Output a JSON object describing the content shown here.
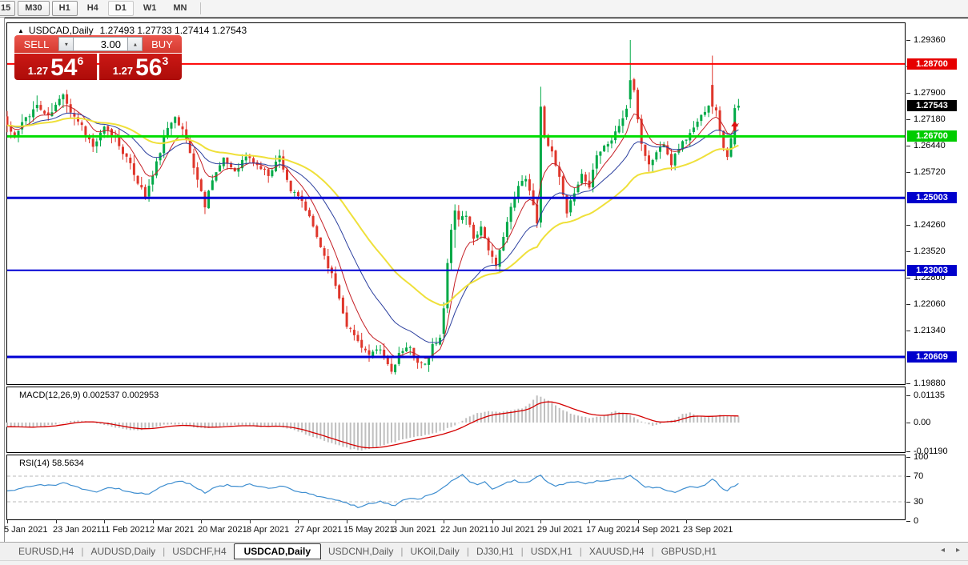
{
  "toolbar": {
    "timeframes": [
      {
        "label": "15",
        "state": "clipped"
      },
      {
        "label": "M30",
        "state": "raised"
      },
      {
        "label": "H1",
        "state": "raised"
      },
      {
        "label": "H4",
        "state": "flat"
      },
      {
        "label": "D1",
        "state": "checked"
      },
      {
        "label": "W1",
        "state": "flat"
      },
      {
        "label": "MN",
        "state": "flat"
      }
    ]
  },
  "icons": {
    "collapse_marker": "▲",
    "spin_down": "▼",
    "spin_up": "▲",
    "tab_scroll_left": "◂",
    "tab_scroll_right": "▸"
  },
  "chart": {
    "title_text": "USDCAD,Daily",
    "ohlc_text": "1.27493 1.27733 1.27414 1.27543"
  },
  "trade_panel": {
    "sell_label": "SELL",
    "buy_label": "BUY",
    "volume": "3.00",
    "sell_price": {
      "prefix": "1.27",
      "big": "54",
      "pip": "6",
      "value": 1.27546
    },
    "buy_price": {
      "prefix": "1.27",
      "big": "56",
      "pip": "3",
      "value": 1.27563
    }
  },
  "indicators": {
    "macd_label": "MACD(12,26,9) 0.002537 0.002953",
    "rsi_label": "RSI(14) 58.5634"
  },
  "tabs": {
    "items": [
      "EURUSD,H4",
      "AUDUSD,Daily",
      "USDCHF,H4",
      "USDCAD,Daily",
      "USDCNH,Daily",
      "UKOil,Daily",
      "DJ30,H1",
      "USDX,H1",
      "XAUUSD,H4",
      "GBPUSD,H1"
    ],
    "active": "USDCAD,Daily"
  },
  "chart_data": {
    "type": "candlestick",
    "symbol": "USDCAD",
    "timeframe": "Daily",
    "current_bar": {
      "open": 1.27493,
      "high": 1.27733,
      "low": 1.27414,
      "close": 1.27543
    },
    "n_candles": 197,
    "seed": 11,
    "candle_colors": {
      "up": "#00a947",
      "down": "#df362b"
    },
    "price_axis": {
      "min": 1.1988,
      "max": 1.2936,
      "ticks": [
        1.2936,
        1.2864,
        1.279,
        1.2718,
        1.2644,
        1.2572,
        1.2426,
        1.2352,
        1.228,
        1.2206,
        1.2134,
        1.1988
      ],
      "badges": [
        {
          "price": 1.287,
          "bg": "#e60000",
          "fg": "#ffffff"
        },
        {
          "price": 1.27543,
          "bg": "#000000",
          "fg": "#ffffff"
        },
        {
          "price": 1.267,
          "bg": "#00cc00",
          "fg": "#ffffff"
        },
        {
          "price": 1.25003,
          "bg": "#0000cc",
          "fg": "#ffffff"
        },
        {
          "price": 1.23003,
          "bg": "#0000cc",
          "fg": "#ffffff"
        },
        {
          "price": 1.20609,
          "bg": "#0000cc",
          "fg": "#ffffff"
        }
      ]
    },
    "levels": [
      {
        "price": 1.287,
        "color": "#ff0000",
        "width": 2
      },
      {
        "price": 1.267,
        "color": "#00dd00",
        "width": 3
      },
      {
        "price": 1.25003,
        "color": "#0000d4",
        "width": 3
      },
      {
        "price": 1.23003,
        "color": "#0000d4",
        "width": 2
      },
      {
        "price": 1.20609,
        "color": "#0000d4",
        "width": 3
      }
    ],
    "date_labels": [
      {
        "index": 0,
        "text": "5 Jan 2021"
      },
      {
        "index": 13,
        "text": "23 Jan 2021"
      },
      {
        "index": 26,
        "text": "11 Feb 2021"
      },
      {
        "index": 39,
        "text": "2 Mar 2021"
      },
      {
        "index": 52,
        "text": "20 Mar 2021"
      },
      {
        "index": 65,
        "text": "8 Apr 2021"
      },
      {
        "index": 78,
        "text": "27 Apr 2021"
      },
      {
        "index": 91,
        "text": "15 May 2021"
      },
      {
        "index": 104,
        "text": "3 Jun 2021"
      },
      {
        "index": 117,
        "text": "22 Jun 2021"
      },
      {
        "index": 130,
        "text": "10 Jul 2021"
      },
      {
        "index": 143,
        "text": "29 Jul 2021"
      },
      {
        "index": 156,
        "text": "17 Aug 2021"
      },
      {
        "index": 169,
        "text": "4 Sep 2021"
      },
      {
        "index": 182,
        "text": "23 Sep 2021"
      }
    ],
    "close_anchors": [
      [
        0,
        1.27
      ],
      [
        2,
        1.2665
      ],
      [
        5,
        1.2722
      ],
      [
        8,
        1.2755
      ],
      [
        11,
        1.2722
      ],
      [
        14,
        1.277
      ],
      [
        15,
        1.2792
      ],
      [
        17,
        1.274
      ],
      [
        20,
        1.27
      ],
      [
        23,
        1.264
      ],
      [
        26,
        1.2692
      ],
      [
        29,
        1.2665
      ],
      [
        32,
        1.261
      ],
      [
        35,
        1.2545
      ],
      [
        37,
        1.2505
      ],
      [
        39,
        1.256
      ],
      [
        42,
        1.2665
      ],
      [
        45,
        1.2732
      ],
      [
        48,
        1.266
      ],
      [
        51,
        1.255
      ],
      [
        53,
        1.248
      ],
      [
        55,
        1.2555
      ],
      [
        58,
        1.2605
      ],
      [
        61,
        1.2575
      ],
      [
        64,
        1.2615
      ],
      [
        67,
        1.259
      ],
      [
        70,
        1.2565
      ],
      [
        73,
        1.2615
      ],
      [
        76,
        1.252
      ],
      [
        79,
        1.249
      ],
      [
        82,
        1.242
      ],
      [
        85,
        1.234
      ],
      [
        88,
        1.226
      ],
      [
        91,
        1.215
      ],
      [
        94,
        1.2105
      ],
      [
        97,
        1.2065
      ],
      [
        100,
        1.208
      ],
      [
        103,
        1.202
      ],
      [
        105,
        1.207
      ],
      [
        108,
        1.2085
      ],
      [
        110,
        1.205
      ],
      [
        112,
        1.2035
      ],
      [
        114,
        1.209
      ],
      [
        116,
        1.211
      ],
      [
        117,
        1.2195
      ],
      [
        121,
        1.244
      ],
      [
        123,
        1.2455
      ],
      [
        125,
        1.239
      ],
      [
        127,
        1.242
      ],
      [
        129,
        1.236
      ],
      [
        131,
        1.2305
      ],
      [
        133,
        1.24
      ],
      [
        135,
        1.247
      ],
      [
        137,
        1.253
      ],
      [
        139,
        1.256
      ],
      [
        141,
        1.248
      ],
      [
        142,
        1.2435
      ],
      [
        144,
        1.268
      ],
      [
        146,
        1.262
      ],
      [
        148,
        1.2555
      ],
      [
        150,
        1.245
      ],
      [
        152,
        1.252
      ],
      [
        154,
        1.2565
      ],
      [
        156,
        1.253
      ],
      [
        158,
        1.2625
      ],
      [
        160,
        1.2645
      ],
      [
        162,
        1.266
      ],
      [
        164,
        1.27
      ],
      [
        166,
        1.2745
      ],
      [
        168,
        1.279
      ],
      [
        170,
        1.265
      ],
      [
        172,
        1.259
      ],
      [
        174,
        1.2625
      ],
      [
        176,
        1.2655
      ],
      [
        178,
        1.2595
      ],
      [
        180,
        1.264
      ],
      [
        182,
        1.2665
      ],
      [
        184,
        1.269
      ],
      [
        186,
        1.2725
      ],
      [
        188,
        1.276
      ],
      [
        190,
        1.2745
      ],
      [
        191,
        1.269
      ],
      [
        192,
        1.264
      ],
      [
        193,
        1.2618
      ],
      [
        194,
        1.266
      ],
      [
        195,
        1.275
      ],
      [
        196,
        1.27543
      ]
    ],
    "volatility_anchors": [
      [
        0,
        0.005
      ],
      [
        15,
        0.0054
      ],
      [
        30,
        0.0044
      ],
      [
        45,
        0.0052
      ],
      [
        60,
        0.0036
      ],
      [
        75,
        0.004
      ],
      [
        90,
        0.0042
      ],
      [
        105,
        0.0038
      ],
      [
        120,
        0.0046
      ],
      [
        135,
        0.0044
      ],
      [
        150,
        0.0048
      ],
      [
        165,
        0.0046
      ],
      [
        180,
        0.0038
      ],
      [
        196,
        0.0034
      ]
    ],
    "feature_candles": [
      {
        "i": 117,
        "o": 1.2125,
        "h": 1.2212,
        "l": 1.2108,
        "c": 1.2195
      },
      {
        "i": 118,
        "o": 1.2195,
        "h": 1.2332,
        "l": 1.2182,
        "c": 1.232
      },
      {
        "i": 119,
        "o": 1.232,
        "h": 1.2428,
        "l": 1.2302,
        "c": 1.2412
      },
      {
        "i": 120,
        "o": 1.2412,
        "h": 1.2482,
        "l": 1.2362,
        "c": 1.2465
      },
      {
        "i": 143,
        "o": 1.2432,
        "h": 1.2807,
        "l": 1.2418,
        "c": 1.2752
      },
      {
        "i": 167,
        "o": 1.2772,
        "h": 1.2936,
        "l": 1.2748,
        "c": 1.2825
      },
      {
        "i": 189,
        "o": 1.2812,
        "h": 1.2893,
        "l": 1.2732,
        "c": 1.2752
      },
      {
        "i": 195,
        "o": 1.2648,
        "h": 1.2758,
        "l": 1.2638,
        "c": 1.2748
      },
      {
        "i": 196,
        "o": 1.27493,
        "h": 1.27733,
        "l": 1.27414,
        "c": 1.27543
      }
    ],
    "moving_averages": [
      {
        "period": 8,
        "color": "#c52026",
        "width": 1
      },
      {
        "period": 21,
        "color": "#2b3f9e",
        "width": 1
      },
      {
        "period": 45,
        "color": "#efe03a",
        "width": 2
      }
    ],
    "markers": [
      {
        "type": "arrow-up",
        "index": 195,
        "price": 1.2712,
        "color": "#dd1111"
      }
    ],
    "macd": {
      "params": "12,26,9",
      "main": 0.002537,
      "signal": 0.002953,
      "axis_ticks": [
        {
          "v": 0.01135,
          "text": "0.01135"
        },
        {
          "v": 0,
          "text": "0.00"
        },
        {
          "v": -0.0119,
          "text": "-0.01190"
        }
      ],
      "histogram_color": "#bfbfbf",
      "signal_color": "#d40000",
      "anchors": [
        [
          0,
          -0.0016
        ],
        [
          6,
          -0.002
        ],
        [
          12,
          -0.001
        ],
        [
          16,
          0.0004
        ],
        [
          19,
          0.0008
        ],
        [
          23,
          0.0001
        ],
        [
          27,
          -0.0013
        ],
        [
          31,
          -0.0026
        ],
        [
          35,
          -0.0033
        ],
        [
          39,
          -0.002
        ],
        [
          43,
          -0.0007
        ],
        [
          47,
          -0.001
        ],
        [
          52,
          -0.0024
        ],
        [
          56,
          -0.0019
        ],
        [
          60,
          -0.0011
        ],
        [
          64,
          -0.0013
        ],
        [
          68,
          -0.0018
        ],
        [
          72,
          -0.0014
        ],
        [
          76,
          -0.0028
        ],
        [
          80,
          -0.0048
        ],
        [
          84,
          -0.007
        ],
        [
          88,
          -0.0092
        ],
        [
          92,
          -0.011
        ],
        [
          95,
          -0.0116
        ],
        [
          99,
          -0.0103
        ],
        [
          103,
          -0.0085
        ],
        [
          107,
          -0.0067
        ],
        [
          111,
          -0.0056
        ],
        [
          114,
          -0.0046
        ],
        [
          117,
          -0.0032
        ],
        [
          120,
          -0.001
        ],
        [
          123,
          0.0018
        ],
        [
          126,
          0.0038
        ],
        [
          129,
          0.0046
        ],
        [
          132,
          0.0044
        ],
        [
          135,
          0.005
        ],
        [
          138,
          0.006
        ],
        [
          140,
          0.0078
        ],
        [
          142,
          0.0113
        ],
        [
          144,
          0.01
        ],
        [
          146,
          0.0082
        ],
        [
          148,
          0.0062
        ],
        [
          150,
          0.0044
        ],
        [
          153,
          0.0028
        ],
        [
          156,
          0.0019
        ],
        [
          159,
          0.0024
        ],
        [
          161,
          0.0036
        ],
        [
          163,
          0.0049
        ],
        [
          165,
          0.0041
        ],
        [
          167,
          0.003
        ],
        [
          169,
          0.0014
        ],
        [
          171,
          -0.0004
        ],
        [
          173,
          -0.0013
        ],
        [
          175,
          -0.0006
        ],
        [
          177,
          0.0006
        ],
        [
          179,
          0.0013
        ],
        [
          181,
          0.0036
        ],
        [
          183,
          0.0042
        ],
        [
          185,
          0.0031
        ],
        [
          187,
          0.0023
        ],
        [
          189,
          0.0027
        ],
        [
          191,
          0.0031
        ],
        [
          193,
          0.0027
        ],
        [
          196,
          0.002537
        ]
      ]
    },
    "rsi": {
      "period": 14,
      "value": 58.5634,
      "axis_ticks": [
        100,
        70,
        30,
        0
      ],
      "levels": [
        70,
        30
      ],
      "line_color": "#3e8ed0",
      "anchors": [
        [
          0,
          47
        ],
        [
          3,
          50
        ],
        [
          6,
          54
        ],
        [
          9,
          57
        ],
        [
          12,
          55
        ],
        [
          15,
          60
        ],
        [
          18,
          54
        ],
        [
          21,
          49
        ],
        [
          24,
          46
        ],
        [
          27,
          53
        ],
        [
          30,
          50
        ],
        [
          33,
          45
        ],
        [
          36,
          43
        ],
        [
          38,
          42
        ],
        [
          41,
          53
        ],
        [
          44,
          59
        ],
        [
          47,
          62
        ],
        [
          50,
          55
        ],
        [
          53,
          44
        ],
        [
          56,
          53
        ],
        [
          59,
          56
        ],
        [
          62,
          53
        ],
        [
          65,
          57
        ],
        [
          68,
          53
        ],
        [
          71,
          51
        ],
        [
          74,
          55
        ],
        [
          77,
          46
        ],
        [
          80,
          44
        ],
        [
          83,
          39
        ],
        [
          86,
          36
        ],
        [
          89,
          32
        ],
        [
          92,
          26
        ],
        [
          94,
          22
        ],
        [
          97,
          27
        ],
        [
          100,
          31
        ],
        [
          102,
          27
        ],
        [
          104,
          24
        ],
        [
          106,
          32
        ],
        [
          108,
          36
        ],
        [
          110,
          33
        ],
        [
          112,
          38
        ],
        [
          114,
          43
        ],
        [
          116,
          48
        ],
        [
          118,
          57
        ],
        [
          120,
          66
        ],
        [
          122,
          73
        ],
        [
          124,
          61
        ],
        [
          126,
          57
        ],
        [
          128,
          62
        ],
        [
          130,
          50
        ],
        [
          132,
          55
        ],
        [
          134,
          60
        ],
        [
          136,
          63
        ],
        [
          138,
          60
        ],
        [
          140,
          61
        ],
        [
          142,
          69
        ],
        [
          143,
          71
        ],
        [
          145,
          59
        ],
        [
          147,
          55
        ],
        [
          149,
          57
        ],
        [
          151,
          61
        ],
        [
          153,
          62
        ],
        [
          155,
          58
        ],
        [
          157,
          61
        ],
        [
          159,
          63
        ],
        [
          161,
          63
        ],
        [
          163,
          65
        ],
        [
          165,
          67
        ],
        [
          167,
          72
        ],
        [
          169,
          62
        ],
        [
          171,
          54
        ],
        [
          173,
          51
        ],
        [
          175,
          52
        ],
        [
          177,
          47
        ],
        [
          179,
          44
        ],
        [
          181,
          50
        ],
        [
          183,
          53
        ],
        [
          185,
          52
        ],
        [
          187,
          55
        ],
        [
          189,
          65
        ],
        [
          190,
          61
        ],
        [
          191,
          55
        ],
        [
          192,
          50
        ],
        [
          193,
          48
        ],
        [
          194,
          52
        ],
        [
          196,
          58.5634
        ]
      ]
    }
  }
}
